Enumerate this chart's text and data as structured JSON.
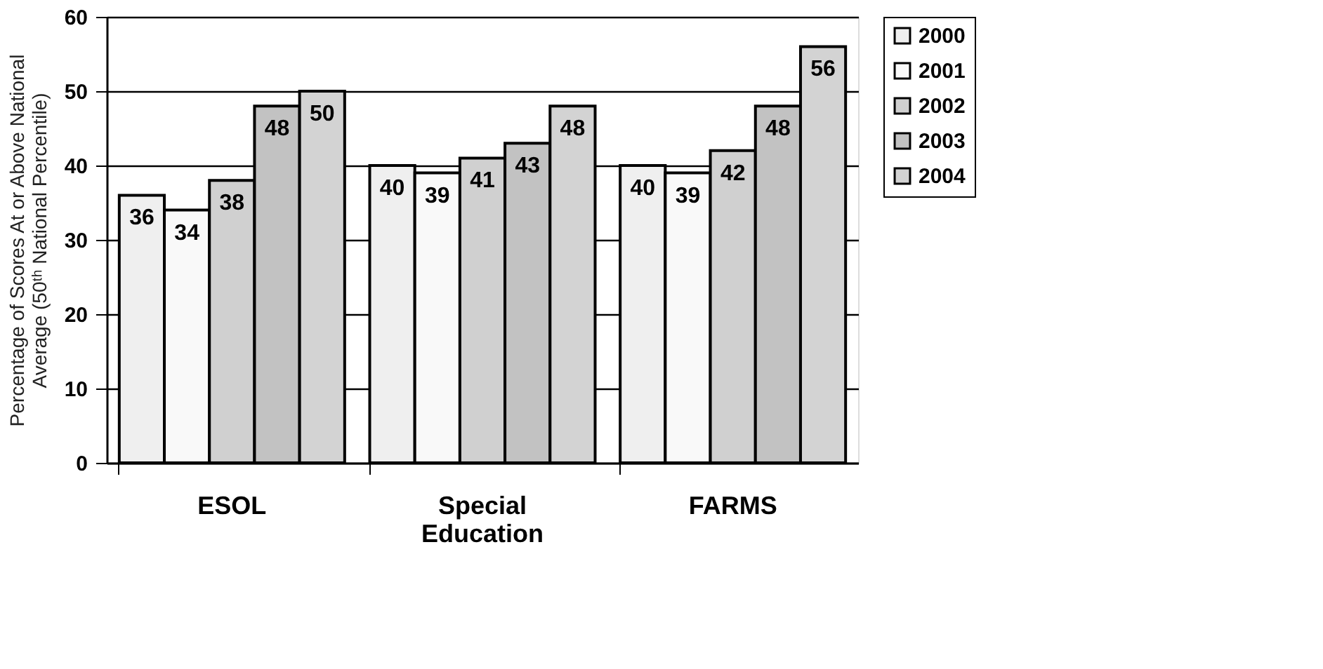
{
  "chart_data": {
    "type": "bar",
    "ylabel": "Percentage of Scores At or Above National Average (50ᵗʰ National Percentile)",
    "categories": [
      "ESOL",
      "Special Education",
      "FARMS"
    ],
    "series": [
      {
        "name": "2000",
        "color": "#efefef",
        "values": [
          36,
          40,
          40
        ]
      },
      {
        "name": "2001",
        "color": "#f9f9f9",
        "values": [
          34,
          39,
          39
        ]
      },
      {
        "name": "2002",
        "color": "#d0d0d0",
        "values": [
          38,
          41,
          42
        ]
      },
      {
        "name": "2003",
        "color": "#c2c2c2",
        "values": [
          48,
          43,
          48
        ]
      },
      {
        "name": "2004",
        "color": "#d3d3d3",
        "values": [
          50,
          48,
          56
        ]
      }
    ],
    "ylim": [
      0,
      60
    ],
    "yticks": [
      0,
      10,
      20,
      30,
      40,
      50,
      60
    ],
    "grid": "y",
    "legend": "right",
    "data_labels": true
  }
}
